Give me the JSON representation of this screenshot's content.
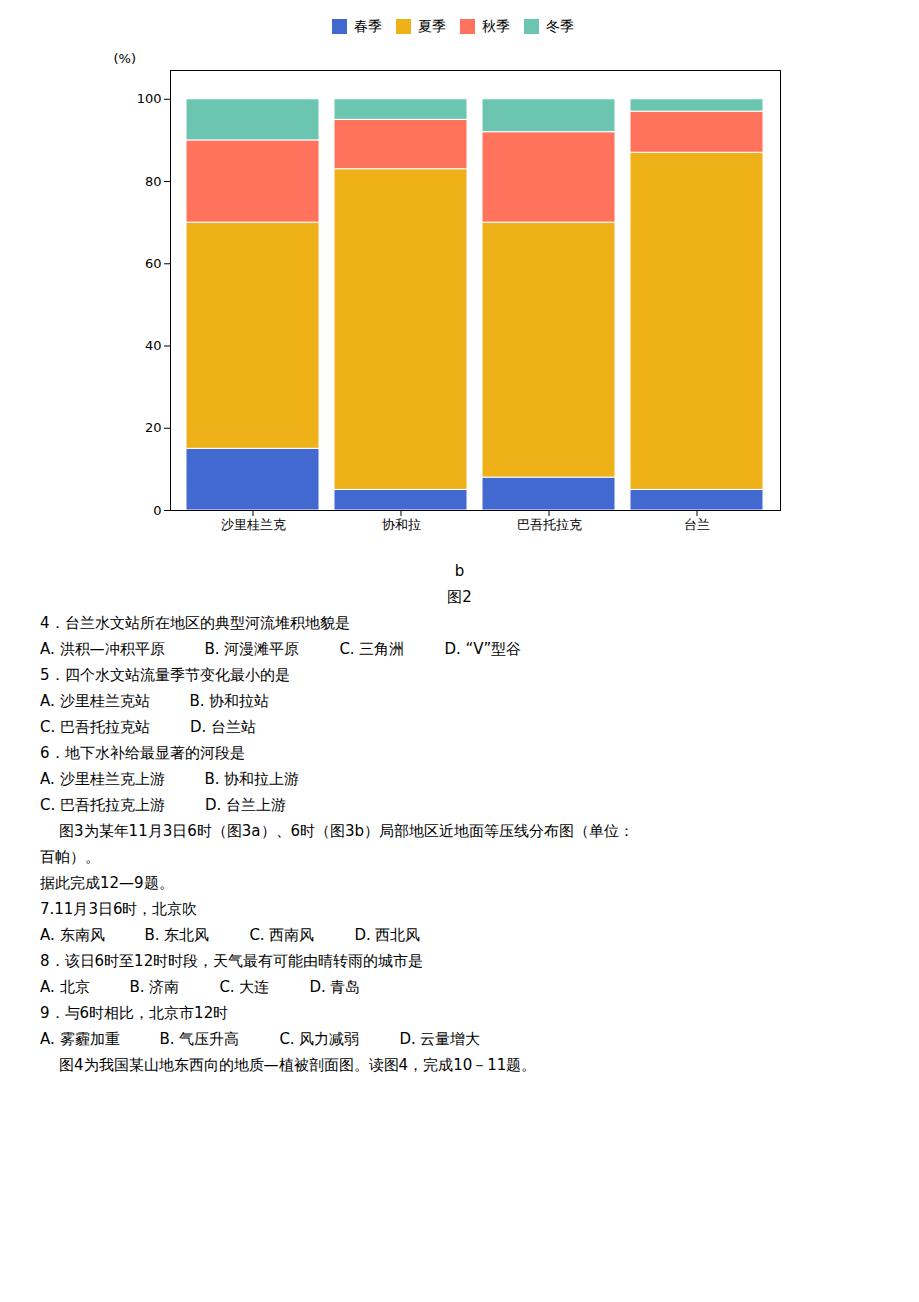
{
  "chart_data": {
    "type": "bar",
    "stacked": true,
    "categories": [
      "沙里桂兰克",
      "协和拉",
      "巴吾托拉克",
      "台兰"
    ],
    "series": [
      {
        "name": "春季",
        "values": [
          15,
          5,
          8,
          5
        ]
      },
      {
        "name": "夏季",
        "values": [
          55,
          78,
          62,
          82
        ]
      },
      {
        "name": "秋季",
        "values": [
          20,
          12,
          22,
          10
        ]
      },
      {
        "name": "冬季",
        "values": [
          10,
          5,
          8,
          3
        ]
      }
    ],
    "ylim": [
      0,
      107
    ],
    "yticks": [
      0,
      20,
      40,
      60,
      80,
      100
    ],
    "ylabel": "(%)",
    "legend": "top",
    "grid": false,
    "annotations": [
      [
        "b"
      ],
      [
        "图2"
      ],
      [
        "4．台兰水文站所在地区的典型河流堆积地貌是"
      ],
      [
        "A. 洪积—冲积平原",
        "B. 河漫滩平原",
        "C. 三角洲",
        "D. “V”型谷"
      ],
      [
        "5．四个水文站流量季节变化最小的是"
      ],
      [
        "A. 沙里桂兰克站",
        "B. 协和拉站"
      ],
      [
        "C. 巴吾托拉克站",
        "D. 台兰站"
      ],
      [
        "6．地下水补给最显著的河段是"
      ],
      [
        "A. 沙里桂兰克上游",
        "B. 协和拉上游"
      ],
      [
        "C. 巴吾托拉克上游",
        "D. 台兰上游"
      ],
      [
        "    图3为某年11月3日6时（图3a）、6时（图3b）局部地区近地面等压线分布图（单位："
      ],
      [
        "百帕）。"
      ],
      [
        "据此完成12—9题。"
      ],
      [
        "7.11月3日6时，北京吹"
      ],
      [
        "A. 东南风",
        "B. 东北风",
        "C. 西南风",
        "D. 西北风"
      ],
      [
        "8．该日6时至12时时段，天气最有可能由晴转雨的城市是"
      ],
      [
        "A. 北京",
        "B. 济南",
        "C. 大连",
        "D. 青岛"
      ],
      [
        "9．与6时相比，北京市12时"
      ],
      [
        "A. 雾霾加重",
        "B. 气压升高",
        "C. 风力减弱",
        "D. 云量增大"
      ],
      [
        "    图4为我国某山地东西向的地质—植被剖面图。读图4，完成10－11题。"
      ]
    ]
  }
}
